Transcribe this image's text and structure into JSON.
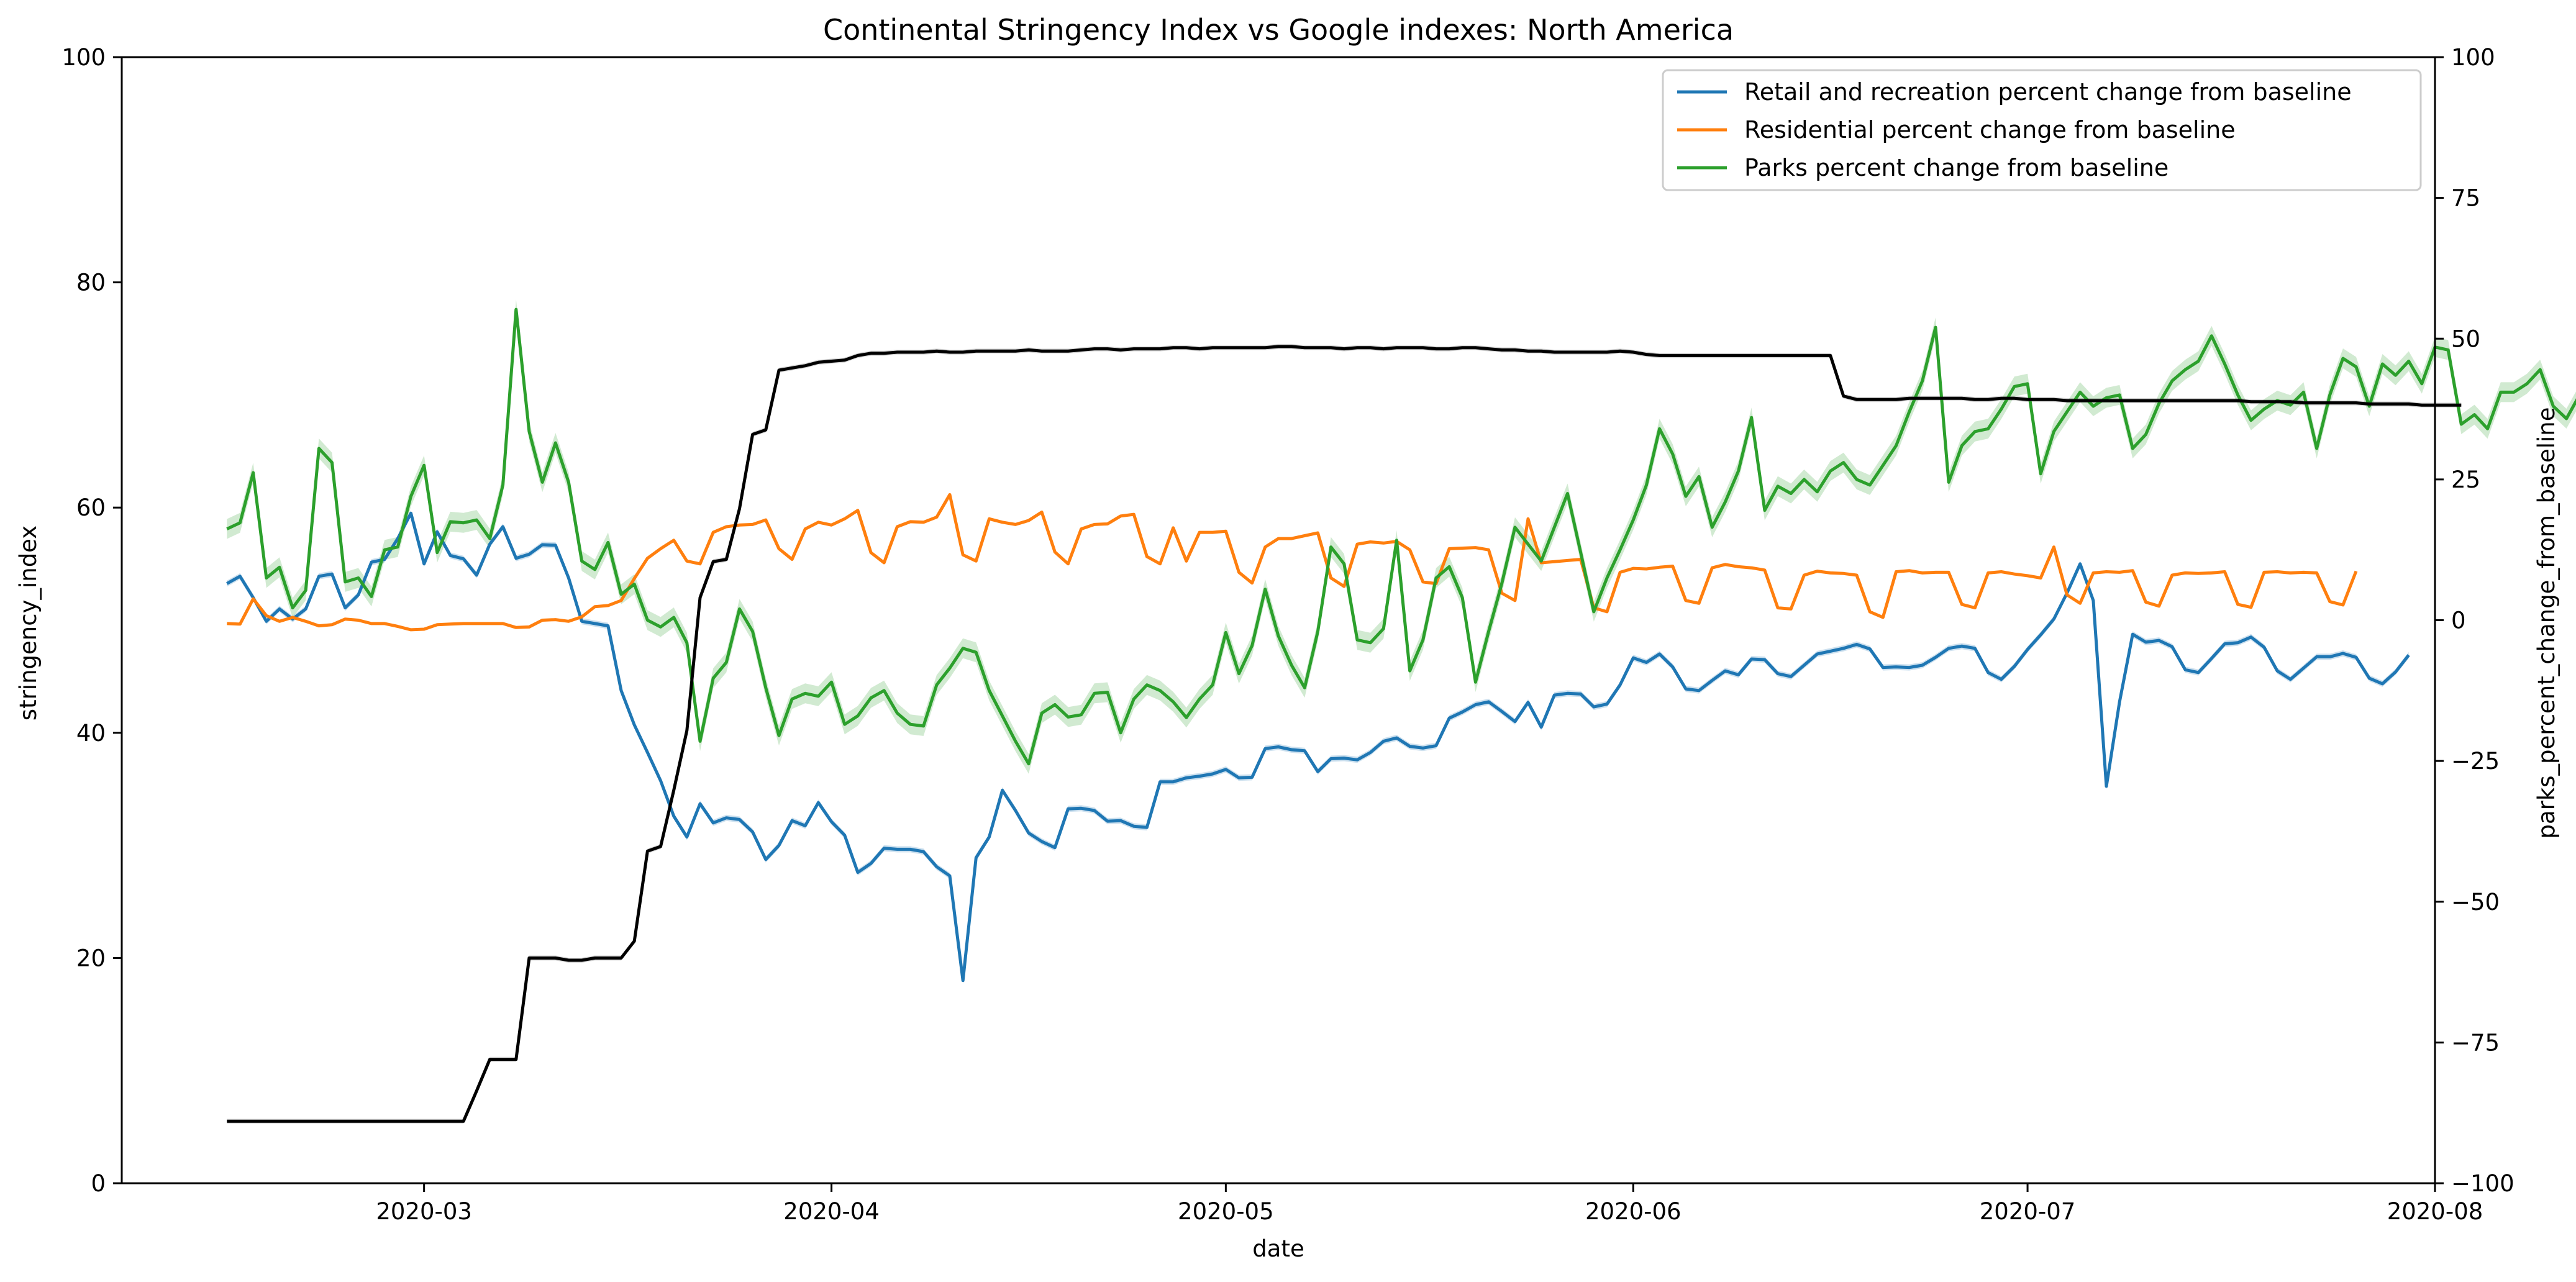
{
  "chart_data": {
    "type": "line",
    "title": "Continental Stringency Index vs Google indexes: North America",
    "xlabel": "date",
    "ylabel_left": "stringency_index",
    "ylabel_right": "parks_percent_change_from_baseline",
    "xlim": [
      "2020-02-07",
      "2020-08-01"
    ],
    "ylim_left": [
      0,
      100
    ],
    "ylim_right": [
      -100,
      100
    ],
    "x_ticks": [
      "2020-03",
      "2020-04",
      "2020-05",
      "2020-06",
      "2020-07",
      "2020-08"
    ],
    "y_ticks_left": [
      "0",
      "20",
      "40",
      "60",
      "80",
      "100"
    ],
    "y_ticks_right": [
      "−100",
      "−75",
      "−50",
      "−25",
      "0",
      "25",
      "50",
      "75",
      "100"
    ],
    "grid": false,
    "legend_position": "top-right",
    "start_date": "2020-02-15",
    "colors": {
      "stringency": "#000000",
      "retail": "#1f77b4",
      "residential": "#ff7f0e",
      "parks": "#2ca02c"
    },
    "stringency_index": {
      "axis": "left",
      "values": [
        5.5,
        5.5,
        5.5,
        5.5,
        5.5,
        5.5,
        5.5,
        5.5,
        5.5,
        5.5,
        5.5,
        5.5,
        5.5,
        5.5,
        5.5,
        5.5,
        5.5,
        5.5,
        5.5,
        8.2,
        11.0,
        11.0,
        11.0,
        20.0,
        20.0,
        20.0,
        19.8,
        19.8,
        20.0,
        20.0,
        20.0,
        21.5,
        29.5,
        29.9,
        34.9,
        40.2,
        52.0,
        55.2,
        55.4,
        59.9,
        66.5,
        66.9,
        72.2,
        72.4,
        72.6,
        72.9,
        73.0,
        73.1,
        73.5,
        73.7,
        73.7,
        73.8,
        73.8,
        73.8,
        73.9,
        73.8,
        73.8,
        73.9,
        73.9,
        73.9,
        73.9,
        74.0,
        73.9,
        73.9,
        73.9,
        74.0,
        74.1,
        74.1,
        74.0,
        74.1,
        74.1,
        74.1,
        74.2,
        74.2,
        74.1,
        74.2,
        74.2,
        74.2,
        74.2,
        74.2,
        74.3,
        74.3,
        74.2,
        74.2,
        74.2,
        74.1,
        74.2,
        74.2,
        74.1,
        74.2,
        74.2,
        74.2,
        74.1,
        74.1,
        74.2,
        74.2,
        74.1,
        74.0,
        74.0,
        73.9,
        73.9,
        73.8,
        73.8,
        73.8,
        73.8,
        73.8,
        73.9,
        73.8,
        73.6,
        73.5,
        73.5,
        73.5,
        73.5,
        73.5,
        73.5,
        73.5,
        73.5,
        73.5,
        73.5,
        73.5,
        73.5,
        73.5,
        73.5,
        69.9,
        69.6,
        69.6,
        69.6,
        69.6,
        69.7,
        69.7,
        69.7,
        69.7,
        69.7,
        69.6,
        69.6,
        69.7,
        69.7,
        69.6,
        69.6,
        69.6,
        69.5,
        69.5,
        69.5,
        69.5,
        69.5,
        69.5,
        69.5,
        69.5,
        69.5,
        69.5,
        69.5,
        69.5,
        69.5,
        69.5,
        69.4,
        69.4,
        69.4,
        69.4,
        69.3,
        69.3,
        69.3,
        69.3,
        69.3,
        69.2,
        69.2,
        69.2,
        69.2,
        69.1,
        69.1,
        69.1,
        69.1
      ]
    },
    "series": [
      {
        "name": "Retail and recreation percent change from baseline",
        "axis": "right",
        "values": [
          6.5,
          7.8,
          4.0,
          -0.2,
          2.0,
          0.2,
          2.0,
          7.8,
          8.2,
          2.2,
          4.5,
          10.3,
          10.8,
          14.5,
          19.0,
          10.0,
          15.7,
          11.5,
          10.9,
          8.0,
          13.5,
          16.6,
          11.0,
          11.7,
          13.4,
          13.3,
          7.5,
          -0.2,
          -0.6,
          -1.0,
          -12.5,
          -18.6,
          -23.5,
          -28.5,
          -34.8,
          -38.5,
          -32.6,
          -36.0,
          -35.1,
          -35.4,
          -37.6,
          -42.5,
          -40.0,
          -35.6,
          -36.5,
          -32.4,
          -35.8,
          -38.2,
          -44.8,
          -43.2,
          -40.5,
          -40.7,
          -40.7,
          -41.1,
          -43.8,
          -45.4,
          -64.0,
          -42.2,
          -38.5,
          -30.2,
          -33.8,
          -37.8,
          -39.3,
          -40.4,
          -33.5,
          -33.4,
          -33.8,
          -35.7,
          -35.6,
          -36.6,
          -36.8,
          -28.7,
          -28.7,
          -28.0,
          -27.7,
          -27.3,
          -26.5,
          -28.0,
          -27.9,
          -22.8,
          -22.5,
          -23.0,
          -23.2,
          -26.9,
          -24.6,
          -24.5,
          -24.8,
          -23.5,
          -21.5,
          -20.9,
          -22.4,
          -22.7,
          -22.3,
          -17.4,
          -16.3,
          -15.0,
          -14.5,
          -16.2,
          -18.0,
          -14.6,
          -19.0,
          -13.3,
          -13.0,
          -13.1,
          -15.4,
          -14.9,
          -11.5,
          -6.7,
          -7.5,
          -6.0,
          -8.3,
          -12.2,
          -12.5,
          -10.7,
          -9.0,
          -9.7,
          -6.9,
          -7.0,
          -9.5,
          -10.0,
          -8.0,
          -6.0,
          -5.5,
          -5.0,
          -4.3,
          -5.1,
          -8.4,
          -8.3,
          -8.4,
          -8.0,
          -6.6,
          -5.0,
          -4.6,
          -5.0,
          -9.3,
          -10.5,
          -8.2,
          -5.2,
          -2.6,
          0.2,
          4.8,
          10.0,
          3.5,
          -29.5,
          -14.5,
          -2.5,
          -3.9,
          -3.6,
          -4.7,
          -8.8,
          -9.3,
          -6.8,
          -4.2,
          -4.0,
          -3.0,
          -4.8,
          -9.0,
          -10.5,
          -8.5,
          -6.5,
          -6.5,
          -5.9,
          -6.6,
          -10.3,
          -11.3,
          -9.2,
          -6.2
        ]
      },
      {
        "name": "Residential percent change from baseline",
        "axis": "right",
        "values": [
          -0.6,
          -0.7,
          3.8,
          0.8,
          -0.2,
          0.5,
          -0.2,
          -1.0,
          -0.8,
          0.2,
          0.0,
          -0.6,
          -0.6,
          -1.1,
          -1.7,
          -1.6,
          -0.8,
          -0.7,
          -0.6,
          -0.6,
          -0.6,
          -0.6,
          -1.3,
          -1.2,
          0.0,
          0.1,
          -0.2,
          0.6,
          2.4,
          2.6,
          3.5,
          7.4,
          11.0,
          12.7,
          14.2,
          10.5,
          10.0,
          15.6,
          16.6,
          16.9,
          17.0,
          17.8,
          12.7,
          10.8,
          16.2,
          17.4,
          16.9,
          18.0,
          19.5,
          12.0,
          10.2,
          16.6,
          17.5,
          17.4,
          18.3,
          22.3,
          11.6,
          10.5,
          18.0,
          17.4,
          17.0,
          17.7,
          19.2,
          12.1,
          10.0,
          16.2,
          17.0,
          17.1,
          18.5,
          18.8,
          11.3,
          10.0,
          16.4,
          10.5,
          15.6,
          15.6,
          15.8,
          8.5,
          6.6,
          13.0,
          14.5,
          14.5,
          15.0,
          15.5,
          7.5,
          6.0,
          13.5,
          13.9,
          13.7,
          14.0,
          12.5,
          6.8,
          6.5,
          12.7,
          12.8,
          12.9,
          12.5,
          4.8,
          3.5,
          18.0,
          10.2,
          10.4,
          10.6,
          10.8,
          2.2,
          1.5,
          8.5,
          9.2,
          9.1,
          9.4,
          9.6,
          3.5,
          3.0,
          9.3,
          9.9,
          9.5,
          9.3,
          8.9,
          2.2,
          2.0,
          8.0,
          8.7,
          8.4,
          8.3,
          8.0,
          1.5,
          0.5,
          8.6,
          8.8,
          8.4,
          8.5,
          8.5,
          2.8,
          2.2,
          8.4,
          8.6,
          8.2,
          7.9,
          7.5,
          13.0,
          4.5,
          3.0,
          8.4,
          8.6,
          8.5,
          8.8,
          3.2,
          2.5,
          8.0,
          8.4,
          8.3,
          8.4,
          8.6,
          2.8,
          2.3,
          8.5,
          8.6,
          8.4,
          8.5,
          8.4,
          3.3,
          2.7,
          8.7
        ]
      },
      {
        "name": "Parks percent change from baseline",
        "axis": "right",
        "values": [
          16.2,
          17.3,
          26.2,
          7.5,
          9.4,
          2.2,
          5.3,
          30.5,
          28.0,
          6.8,
          7.5,
          4.2,
          12.5,
          13.0,
          22.0,
          27.5,
          12.0,
          17.5,
          17.3,
          17.8,
          14.5,
          24.0,
          55.2,
          33.5,
          24.5,
          31.5,
          24.5,
          10.5,
          9.0,
          13.8,
          4.6,
          6.4,
          0.0,
          -1.2,
          0.5,
          -4.0,
          -21.5,
          -10.3,
          -7.5,
          2.0,
          -2.0,
          -12.0,
          -20.5,
          -14.0,
          -13.0,
          -13.5,
          -11.0,
          -18.5,
          -17.0,
          -13.8,
          -12.5,
          -16.5,
          -18.5,
          -18.8,
          -11.5,
          -8.5,
          -5.0,
          -5.7,
          -12.5,
          -17.0,
          -21.5,
          -25.5,
          -16.5,
          -15.0,
          -17.2,
          -16.8,
          -13.0,
          -12.8,
          -20.0,
          -14.0,
          -11.5,
          -12.5,
          -14.5,
          -17.3,
          -14.0,
          -11.5,
          -2.2,
          -9.5,
          -4.5,
          5.5,
          -2.8,
          -8.0,
          -12.0,
          -2.0,
          13.0,
          10.0,
          -3.5,
          -4.0,
          -1.5,
          14.2,
          -9.0,
          -3.5,
          7.5,
          9.5,
          4.0,
          -11.0,
          -2.0,
          6.5,
          16.5,
          13.5,
          10.5,
          16.5,
          22.5,
          12.0,
          1.5,
          7.5,
          12.5,
          17.8,
          24.0,
          34.0,
          29.5,
          22.0,
          25.5,
          16.5,
          21.0,
          26.5,
          36.0,
          19.5,
          23.8,
          22.5,
          25.0,
          22.8,
          26.5,
          28.0,
          25.0,
          24.0,
          27.5,
          31.0,
          37.0,
          42.5,
          52.0,
          24.5,
          31.0,
          33.5,
          34.0,
          37.5,
          41.5,
          42.0,
          26.0,
          33.5,
          37.0,
          40.5,
          38.0,
          39.5,
          40.0,
          30.5,
          33.0,
          38.5,
          42.5,
          44.5,
          46.0,
          50.5,
          45.5,
          40.0,
          35.5,
          37.5,
          39.0,
          38.2,
          40.5,
          30.5,
          40.0,
          46.5,
          45.0,
          38.0,
          45.5,
          43.5,
          46.0,
          42.0,
          48.5,
          48.0,
          34.8,
          36.5,
          34.0,
          40.5,
          40.5,
          42.0,
          44.5,
          38.0,
          35.8,
          40.0,
          41.0,
          44.0
        ]
      }
    ]
  }
}
